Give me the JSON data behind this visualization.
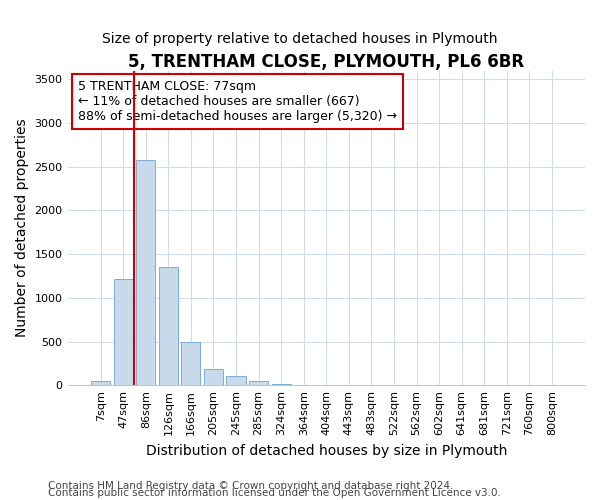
{
  "title": "5, TRENTHAM CLOSE, PLYMOUTH, PL6 6BR",
  "subtitle": "Size of property relative to detached houses in Plymouth",
  "xlabel": "Distribution of detached houses by size in Plymouth",
  "ylabel": "Number of detached properties",
  "bar_labels": [
    "7sqm",
    "47sqm",
    "86sqm",
    "126sqm",
    "166sqm",
    "205sqm",
    "245sqm",
    "285sqm",
    "324sqm",
    "364sqm",
    "404sqm",
    "443sqm",
    "483sqm",
    "522sqm",
    "562sqm",
    "602sqm",
    "641sqm",
    "681sqm",
    "721sqm",
    "760sqm",
    "800sqm"
  ],
  "bar_values": [
    50,
    1220,
    2580,
    1350,
    500,
    190,
    105,
    50,
    15,
    5,
    5,
    0,
    0,
    0,
    0,
    0,
    0,
    0,
    0,
    0,
    0
  ],
  "bar_color": "#c9d9ec",
  "bar_edge_color": "#7aafd4",
  "property_line_color": "#cc0000",
  "property_line_x": 1.5,
  "annotation_line1": "5 TRENTHAM CLOSE: 77sqm",
  "annotation_line2": "← 11% of detached houses are smaller (667)",
  "annotation_line3": "88% of semi-detached houses are larger (5,320) →",
  "annotation_box_color": "#ffffff",
  "annotation_box_edge": "#cc0000",
  "ylim": [
    0,
    3600
  ],
  "yticks": [
    0,
    500,
    1000,
    1500,
    2000,
    2500,
    3000,
    3500
  ],
  "footer1": "Contains HM Land Registry data © Crown copyright and database right 2024.",
  "footer2": "Contains public sector information licensed under the Open Government Licence v3.0.",
  "background_color": "#ffffff",
  "plot_bg_color": "#ffffff",
  "grid_color": "#d0dce8",
  "title_fontsize": 12,
  "subtitle_fontsize": 10,
  "axis_label_fontsize": 10,
  "tick_fontsize": 8,
  "annotation_fontsize": 9,
  "footer_fontsize": 7.5
}
